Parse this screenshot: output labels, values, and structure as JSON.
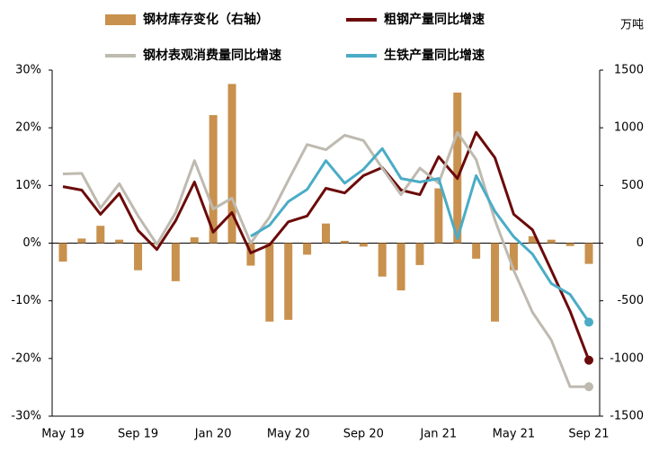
{
  "chart_data": {
    "type": "combo",
    "y2_label": "万吨",
    "categories": [
      "May 19",
      null,
      null,
      null,
      "Sep 19",
      null,
      null,
      null,
      "Jan 20",
      null,
      null,
      null,
      "May 20",
      null,
      null,
      null,
      "Sep 20",
      null,
      null,
      null,
      "Jan 21",
      null,
      null,
      null,
      "May 21",
      null,
      null,
      null,
      "Sep 21"
    ],
    "series": [
      {
        "name": "钢材库存变化（右轴）",
        "type": "bar",
        "axis": "y2",
        "color": "#c8914e",
        "values": [
          -160,
          40,
          150,
          30,
          -235,
          -10,
          -330,
          50,
          1110,
          1380,
          -195,
          -680,
          -665,
          -100,
          170,
          20,
          -30,
          -290,
          -410,
          -190,
          475,
          1305,
          -135,
          -680,
          -235,
          60,
          30,
          -25,
          -180
        ]
      },
      {
        "name": "粗钢产量同比增速",
        "type": "line",
        "color": "#6b0a0a",
        "values": [
          9.8,
          9.2,
          5.0,
          8.6,
          2.2,
          -1.1,
          3.9,
          10.6,
          1.9,
          5.3,
          -1.7,
          -0.3,
          3.7,
          4.7,
          9.5,
          8.7,
          11.7,
          13.1,
          9.2,
          8.4,
          15.0,
          11.2,
          19.2,
          14.8,
          5.0,
          2.3,
          -4.7,
          -11.8,
          -20.3
        ]
      },
      {
        "name": "钢材表观消费量同比增速",
        "type": "line",
        "color": "#bfbab0",
        "values": [
          12.0,
          12.1,
          6.1,
          10.3,
          4.7,
          -0.2,
          5.3,
          14.3,
          5.9,
          7.8,
          0.0,
          4.5,
          10.9,
          17.1,
          16.2,
          18.7,
          17.8,
          13.0,
          8.4,
          13.0,
          10.4,
          19.2,
          14.5,
          4.0,
          -4.7,
          -12.0,
          -16.8,
          -24.9,
          -24.9
        ]
      },
      {
        "name": "生铁产量同比增速",
        "type": "line",
        "color": "#4aacc6",
        "values": [
          null,
          null,
          null,
          null,
          null,
          null,
          null,
          null,
          null,
          null,
          1.2,
          3.1,
          7.2,
          9.3,
          14.3,
          10.4,
          12.8,
          16.4,
          11.2,
          10.6,
          11.2,
          0.8,
          11.7,
          5.5,
          1.1,
          -1.9,
          -7.0,
          -8.9,
          -13.7
        ]
      }
    ],
    "ylim": [
      -30,
      30
    ],
    "yticks": [
      {
        "value": 30,
        "label": "30%"
      },
      {
        "value": 20,
        "label": "20%"
      },
      {
        "value": 10,
        "label": "10%"
      },
      {
        "value": 0,
        "label": "0%"
      },
      {
        "value": -10,
        "label": "-10%"
      },
      {
        "value": -20,
        "label": "-20%"
      },
      {
        "value": -30,
        "label": "-30%"
      }
    ],
    "y2lim": [
      -1500,
      1500
    ],
    "y2ticks": [
      1500,
      1000,
      500,
      0,
      -500,
      -1000,
      -1500
    ],
    "end_markers": true
  }
}
